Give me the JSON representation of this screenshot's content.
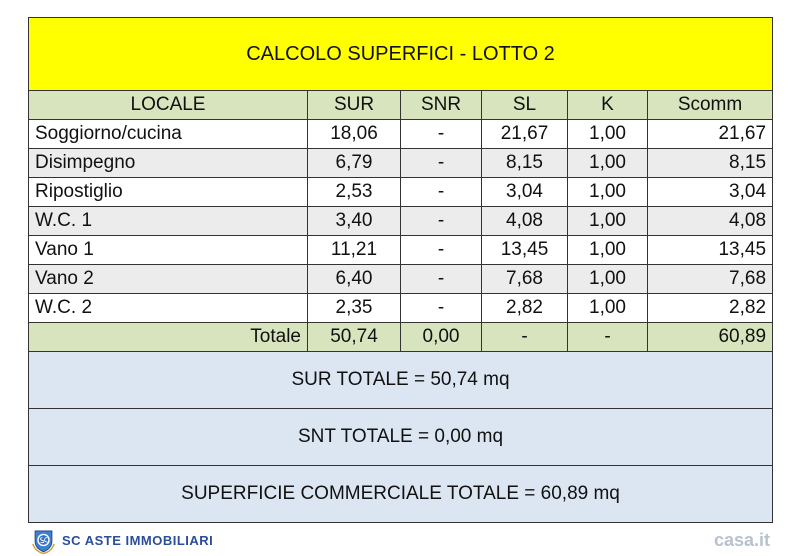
{
  "title": "CALCOLO SUPERFICI - LOTTO 2",
  "headers": [
    "LOCALE",
    "SUR",
    "SNR",
    "SL",
    "K",
    "Scomm"
  ],
  "rows": [
    [
      "Soggiorno/cucina",
      "18,06",
      "-",
      "21,67",
      "1,00",
      "21,67"
    ],
    [
      "Disimpegno",
      "6,79",
      "-",
      "8,15",
      "1,00",
      "8,15"
    ],
    [
      "Ripostiglio",
      "2,53",
      "-",
      "3,04",
      "1,00",
      "3,04"
    ],
    [
      "W.C. 1",
      "3,40",
      "-",
      "4,08",
      "1,00",
      "4,08"
    ],
    [
      "Vano 1",
      "11,21",
      "-",
      "13,45",
      "1,00",
      "13,45"
    ],
    [
      "Vano 2",
      "6,40",
      "-",
      "7,68",
      "1,00",
      "7,68"
    ],
    [
      "W.C. 2",
      "2,35",
      "-",
      "2,82",
      "1,00",
      "2,82"
    ]
  ],
  "total": [
    "Totale",
    "50,74",
    "0,00",
    "-",
    "-",
    "60,89"
  ],
  "summary": [
    "SUR TOTALE = 50,74 mq",
    "SNT TOTALE = 0,00 mq",
    "SUPERFICIE COMMERCIALE TOTALE = 60,89 mq"
  ],
  "watermarks": {
    "logo_text": "SC ASTE IMMOBILIARI",
    "casa": "casa.it"
  },
  "colors": {
    "title_bg": "#ffff00",
    "header_bg": "#d7e4bd",
    "summary_bg": "#dce6f2"
  }
}
